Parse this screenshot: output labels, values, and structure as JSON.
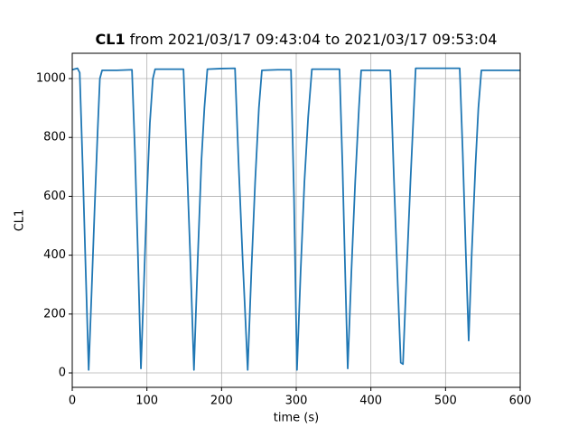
{
  "chart_data": {
    "type": "line",
    "title_bold": "CL1",
    "title": "from 2021/03/17 09:43:04 to 2021/03/17 09:53:04",
    "x_label": "time (s)",
    "y_label": "CL1",
    "xlim": [
      0,
      600
    ],
    "ylim": [
      -49,
      1086
    ],
    "xticks": [
      0,
      100,
      200,
      300,
      400,
      500,
      600
    ],
    "yticks": [
      0,
      200,
      400,
      600,
      800,
      1000
    ],
    "grid": true,
    "series": [
      {
        "name": "CL1",
        "color": "#1f77b4",
        "x": [
          0,
          7,
          10,
          14,
          18,
          22,
          26,
          30,
          34,
          37,
          40,
          60,
          80,
          84,
          88,
          92,
          96,
          100,
          104,
          108,
          111,
          130,
          149,
          153,
          158,
          163,
          168,
          173,
          177,
          181,
          200,
          218,
          223,
          228,
          232,
          235,
          240,
          245,
          250,
          254,
          275,
          293,
          297,
          301,
          306,
          311,
          316,
          321,
          340,
          358,
          362,
          366,
          369,
          374,
          379,
          384,
          387,
          405,
          426,
          431,
          436,
          440,
          443,
          448,
          453,
          460,
          490,
          519,
          523,
          527,
          531,
          535,
          540,
          544,
          548,
          575,
          600
        ],
        "values": [
          1030,
          1035,
          1020,
          700,
          350,
          10,
          280,
          560,
          820,
          1000,
          1028,
          1028,
          1030,
          750,
          400,
          15,
          300,
          600,
          850,
          1000,
          1032,
          1032,
          1032,
          750,
          400,
          10,
          380,
          720,
          900,
          1032,
          1034,
          1035,
          700,
          400,
          180,
          10,
          350,
          650,
          900,
          1028,
          1030,
          1030,
          600,
          10,
          350,
          650,
          870,
          1032,
          1032,
          1032,
          700,
          300,
          15,
          350,
          650,
          900,
          1028,
          1028,
          1028,
          650,
          300,
          35,
          30,
          350,
          650,
          1035,
          1035,
          1035,
          750,
          420,
          110,
          400,
          700,
          900,
          1028,
          1028,
          1028
        ]
      }
    ]
  }
}
